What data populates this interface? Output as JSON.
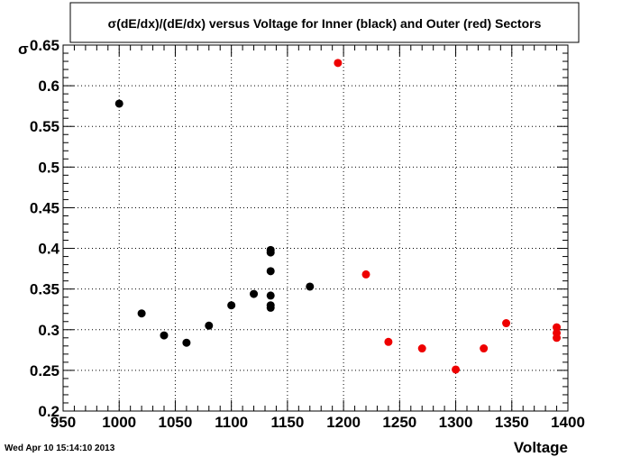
{
  "page": {
    "timestamp": "Wed Apr 10 15:14:10 2013"
  },
  "chart_data": {
    "type": "scatter",
    "title": "σ(dE/dx)/(dE/dx) versus Voltage for Inner (black) and Outer (red) Sectors",
    "xlabel": "Voltage",
    "ylabel": "σ",
    "xlim": [
      950,
      1400
    ],
    "ylim": [
      0.2,
      0.65
    ],
    "x_ticks": [
      "950",
      "1000",
      "1050",
      "1100",
      "1150",
      "1200",
      "1250",
      "1300",
      "1350",
      "1400"
    ],
    "y_ticks": [
      "0.2",
      "0.25",
      "0.3",
      "0.35",
      "0.4",
      "0.45",
      "0.5",
      "0.55",
      "0.6",
      "0.65"
    ],
    "grid": true,
    "colors": {
      "inner": "#000000",
      "outer": "#ee0000"
    },
    "series": [
      {
        "points": [
          {
            "x": 1000,
            "y": 0.578
          },
          {
            "x": 1020,
            "y": 0.32
          },
          {
            "x": 1040,
            "y": 0.293
          },
          {
            "x": 1060,
            "y": 0.284
          },
          {
            "x": 1080,
            "y": 0.305
          },
          {
            "x": 1100,
            "y": 0.33
          },
          {
            "x": 1120,
            "y": 0.344
          },
          {
            "x": 1135,
            "y": 0.398
          },
          {
            "x": 1135,
            "y": 0.395
          },
          {
            "x": 1135,
            "y": 0.372
          },
          {
            "x": 1135,
            "y": 0.342
          },
          {
            "x": 1135,
            "y": 0.33
          },
          {
            "x": 1135,
            "y": 0.327
          },
          {
            "x": 1170,
            "y": 0.353
          }
        ]
      },
      {
        "points": [
          {
            "x": 1195,
            "y": 0.628
          },
          {
            "x": 1220,
            "y": 0.368
          },
          {
            "x": 1240,
            "y": 0.285
          },
          {
            "x": 1270,
            "y": 0.277
          },
          {
            "x": 1300,
            "y": 0.251
          },
          {
            "x": 1325,
            "y": 0.277
          },
          {
            "x": 1345,
            "y": 0.308
          },
          {
            "x": 1390,
            "y": 0.303
          },
          {
            "x": 1390,
            "y": 0.296
          },
          {
            "x": 1390,
            "y": 0.29
          }
        ]
      }
    ]
  }
}
